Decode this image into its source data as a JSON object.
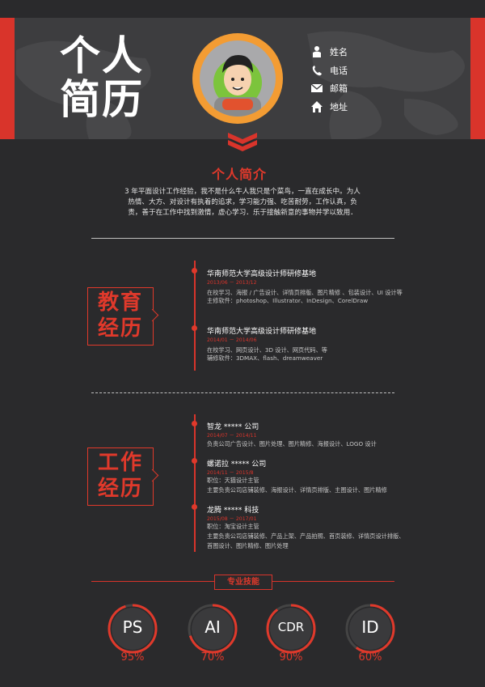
{
  "header": {
    "title_line1": "个人",
    "title_line2": "简历",
    "contacts": [
      {
        "icon": "person-icon",
        "label": "姓名"
      },
      {
        "icon": "phone-icon",
        "label": "电话"
      },
      {
        "icon": "mail-icon",
        "label": "邮箱"
      },
      {
        "icon": "home-icon",
        "label": "地址"
      }
    ]
  },
  "intro": {
    "title": "个人简介",
    "text": "3 年平面设计工作经验，我不是什么牛人我只是个菜鸟，一直在成长中。为人热情、大方、对设计有执着的追求，学习能力强、吃苦耐劳，工作认真，负责，善于在工作中找到激情，虚心学习．乐于接触新意的事物并学以致用．"
  },
  "education": {
    "tag_line1": "教育",
    "tag_line2": "经历",
    "items": [
      {
        "title": "华南师范大学高级设计师研修基地",
        "date": "2013/06 － 2013/12",
        "desc1": "在校学习、海报 / 广告设计、详情页排版、图片精修 、包装设计、UI 设计等",
        "desc2": "主修软件：photoshop、Illustrator、InDesign、CorelDraw"
      },
      {
        "title": "华南师范大学高级设计师研修基地",
        "date": "2014/01 － 2014/06",
        "desc1": "在校学习、网页设计、3D 设计、网页代码、等",
        "desc2": "辅修软件：3DMAX、flash、dreamweaver"
      }
    ]
  },
  "work": {
    "tag_line1": "工作",
    "tag_line2": "经历",
    "items": [
      {
        "title": "智龙 ***** 公司",
        "date": "2014/07 － 2014/11",
        "desc1": "负责公司广告设计、图片处理、图片精修、海报设计、LOGO 设计",
        "desc2": "",
        "desc3": ""
      },
      {
        "title": "螺诺拉 ***** 公司",
        "date": "2014/11 － 2015/8",
        "desc1": "职位：天猫设计主管",
        "desc2": "主要负责公司店铺装修、海报设计、详情页排版、主图设计、图片精修",
        "desc3": ""
      },
      {
        "title": "龙腾 ***** 科技",
        "date": "2015/08 － 2017/01",
        "desc1": "职位：淘宝设计主管",
        "desc2": "主要负责公司店铺装修、产品上架、产品拍照、首页装修、详情页设计排版、",
        "desc3": "首图设计、图片精修、图片处理"
      }
    ]
  },
  "skills": {
    "title": "专业技能",
    "accent": "#e0392b",
    "items": [
      {
        "name": "PS",
        "percent_label": "95%",
        "value": 95
      },
      {
        "name": "AI",
        "percent_label": "70%",
        "value": 70
      },
      {
        "name": "CDR",
        "percent_label": "90%",
        "value": 90
      },
      {
        "name": "ID",
        "percent_label": "60%",
        "value": 60
      }
    ]
  }
}
